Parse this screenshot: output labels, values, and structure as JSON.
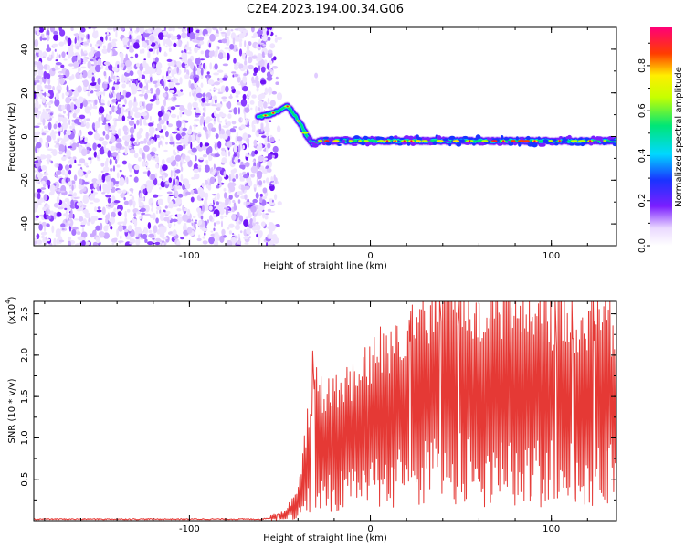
{
  "title": "C2E4.2023.194.00.34.G06",
  "chart_data": [
    {
      "type": "heatmap",
      "xlabel": "Height of straight line (km)",
      "ylabel": "Frequency (Hz)",
      "xlim": [
        -186,
        136
      ],
      "ylim": [
        -50,
        50
      ],
      "xticks": [
        -100,
        0,
        100
      ],
      "yticks": [
        -40,
        -20,
        0,
        20,
        40
      ],
      "colorbar": {
        "label": "Normalized spectral amplitude",
        "range": [
          0.0,
          0.97
        ],
        "ticks": [
          0.0,
          0.2,
          0.4,
          0.6,
          0.8
        ]
      },
      "noise_region_x": [
        -186,
        -54
      ],
      "ridge": {
        "x": [
          -62,
          -56,
          -50,
          -46,
          -42,
          -38,
          -35,
          -32,
          -28,
          -20,
          0,
          20,
          40,
          60,
          80,
          100,
          120,
          136
        ],
        "y": [
          9,
          10,
          12,
          14,
          10,
          5,
          0,
          -3,
          -2,
          -2,
          -2,
          -2,
          -2,
          -2,
          -2,
          -2,
          -2,
          -2
        ]
      }
    },
    {
      "type": "line",
      "xlabel": "Height of straight line (km)",
      "ylabel": "SNR (10 * v/v)",
      "scale_note": "(x10",
      "scale_exp": "4",
      "xlim": [
        -186,
        136
      ],
      "ylim": [
        0,
        2.65
      ],
      "xticks": [
        -100,
        0,
        100
      ],
      "yticks": [
        0.5,
        1.0,
        1.5,
        2.0,
        2.5
      ],
      "color": "#e53935",
      "envelope": {
        "x": [
          -186,
          -60,
          -48,
          -40,
          -35,
          -30,
          -25,
          -20,
          -10,
          0,
          10,
          20,
          30,
          40,
          50,
          60,
          70,
          80,
          90,
          100,
          110,
          120,
          130,
          136
        ],
        "y": [
          0.02,
          0.02,
          0.06,
          0.2,
          0.7,
          1.1,
          0.9,
          0.95,
          1.05,
          1.2,
          1.3,
          1.45,
          1.55,
          1.6,
          1.65,
          1.6,
          1.6,
          1.55,
          1.6,
          1.55,
          1.5,
          1.5,
          1.45,
          1.45
        ]
      },
      "peaks": [
        {
          "x": -32,
          "y": 2.05
        },
        {
          "x": 46,
          "y": 2.55
        },
        {
          "x": 93,
          "y": 2.62
        },
        {
          "x": 112,
          "y": 2.2
        }
      ]
    }
  ]
}
